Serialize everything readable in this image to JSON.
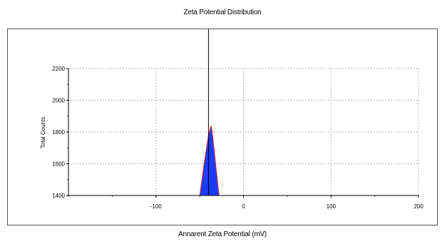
{
  "chart_data": {
    "type": "area",
    "title": "Zeta Potential Distribution",
    "xlabel": "Annarent Zeta Potential (mV)",
    "ylabel": "Total Counts",
    "xlim": [
      -200,
      200
    ],
    "ylim": [
      1400,
      2200
    ],
    "xticks": [
      -100,
      0,
      100,
      200
    ],
    "yticks": [
      1400,
      1600,
      1800,
      2000,
      2200
    ],
    "grid": true,
    "series": [
      {
        "x": [
          -50,
          -45,
          -40,
          -37,
          -35,
          -30,
          -28
        ],
        "y": [
          1400,
          1600,
          1780,
          1840,
          1760,
          1500,
          1400
        ],
        "fill_color": "#1a3cff",
        "line_color": "#e02020"
      }
    ],
    "marker_line_x": -40,
    "colors": {
      "fill": "#1a3cff",
      "outline": "#e02020",
      "grid": "#9a9a9a",
      "axis": "#000000"
    }
  }
}
